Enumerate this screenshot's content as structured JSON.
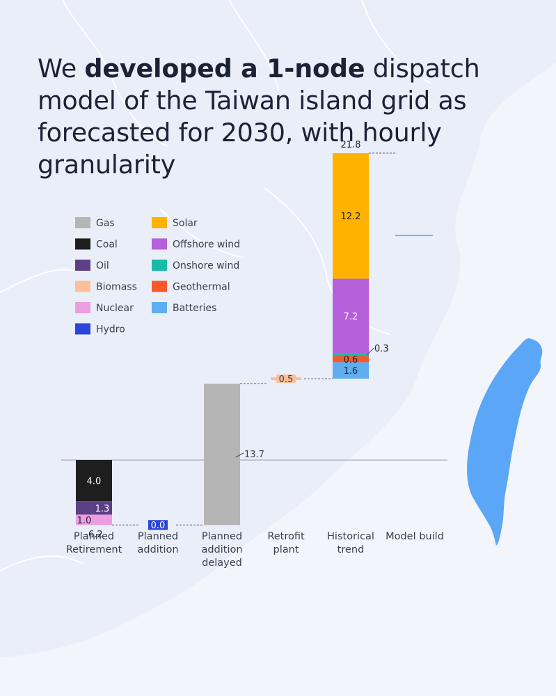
{
  "headline": {
    "part1": "We ",
    "bold": "developed a 1-node",
    "part2": " dispatch model of the Taiwan island grid as forecasted for 2030, with hourly granularity"
  },
  "colors": {
    "text": "#1b2235",
    "background": "#f2f5fb",
    "taiwan": "#5ca6f7"
  },
  "icons": [
    "taiwan-map-icon"
  ],
  "chart_data": {
    "type": "waterfall",
    "legend_position": "top-left",
    "legend": [
      {
        "name": "Gas",
        "color": "#b5b5b5"
      },
      {
        "name": "Solar",
        "color": "#ffb300"
      },
      {
        "name": "Coal",
        "color": "#1e1e1e"
      },
      {
        "name": "Offshore wind",
        "color": "#b65fdb"
      },
      {
        "name": "Oil",
        "color": "#5c3f85"
      },
      {
        "name": "Onshore wind",
        "color": "#17bba7"
      },
      {
        "name": "Biomass",
        "color": "#fdbf9a"
      },
      {
        "name": "Geothermal",
        "color": "#f55a2c"
      },
      {
        "name": "Nuclear",
        "color": "#ec9ee0"
      },
      {
        "name": "Batteries",
        "color": "#60aef2"
      },
      {
        "name": "Hydro",
        "color": "#2a45d8"
      }
    ],
    "categories": [
      "Planned\nRetirement",
      "Planned\naddition",
      "Planned\naddition\ndelayed",
      "Retrofit\nplant",
      "Historical\ntrend",
      "Model build"
    ],
    "steps": [
      {
        "category": "Planned\nRetirement",
        "total_label": "-6.2",
        "segments": [
          {
            "source": "Coal",
            "value": -4.0,
            "label": "4.0"
          },
          {
            "source": "Oil",
            "value": -1.3,
            "label": "1.3"
          },
          {
            "source": "Nuclear",
            "value": -1.0,
            "label": "1.0"
          }
        ]
      },
      {
        "category": "Planned\naddition",
        "segments": [
          {
            "source": "Hydro",
            "value": 0.0,
            "label": "0.0"
          }
        ]
      },
      {
        "category": "Planned\naddition\ndelayed",
        "segments": [
          {
            "source": "Gas",
            "value": 13.7,
            "label": "13.7"
          }
        ]
      },
      {
        "category": "Retrofit\nplant",
        "segments": [
          {
            "source": "Biomass",
            "value": 0.5,
            "label": "0.5"
          }
        ]
      },
      {
        "category": "Historical\ntrend",
        "total_label": "21.8",
        "segments": [
          {
            "source": "Batteries",
            "value": 1.6,
            "label": "1.6"
          },
          {
            "source": "Geothermal",
            "value": 0.6,
            "label": "0.6"
          },
          {
            "source": "Onshore wind",
            "value": 0.3,
            "label": "0.3"
          },
          {
            "source": "Offshore wind",
            "value": 7.2,
            "label": "7.2"
          },
          {
            "source": "Solar",
            "value": 12.2,
            "label": "12.2"
          }
        ]
      },
      {
        "category": "Model build",
        "segments": []
      }
    ],
    "final_level": 21.8,
    "ylim": [
      -6.5,
      22.5
    ]
  }
}
